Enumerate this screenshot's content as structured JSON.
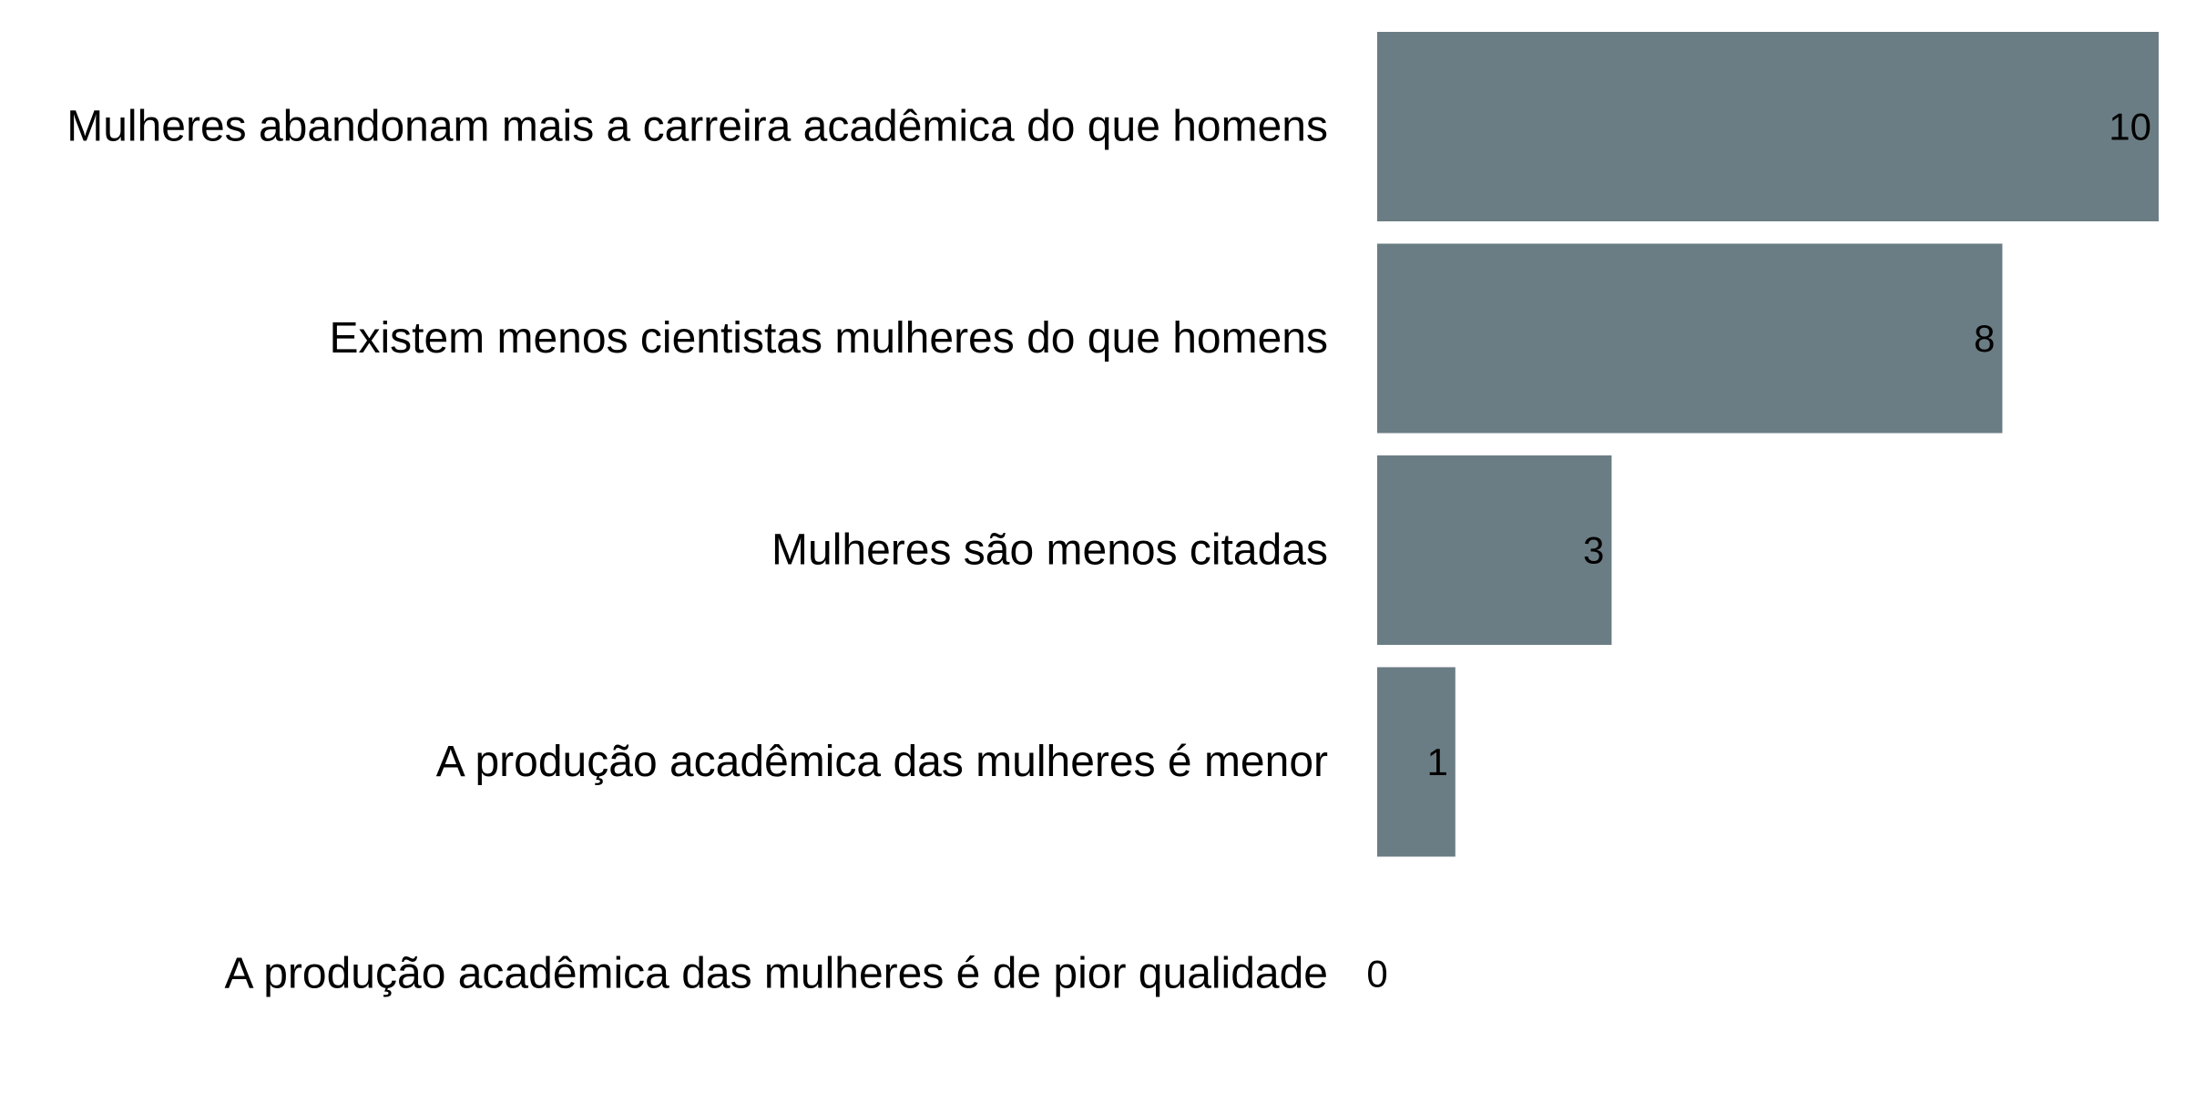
{
  "chart_data": {
    "type": "bar",
    "orientation": "horizontal",
    "categories": [
      "Mulheres abandonam mais a carreira acadêmica do que homens",
      "Existem menos cientistas mulheres do que homens",
      "Mulheres são menos citadas",
      "A produção acadêmica das mulheres é menor",
      "A produção acadêmica das mulheres é de pior qualidade"
    ],
    "values": [
      10,
      8,
      3,
      1,
      0
    ],
    "data_labels": [
      "10",
      "8",
      "3",
      "1",
      "0"
    ],
    "xlim": [
      0,
      10
    ],
    "bar_color": "#6b7d84",
    "grid": false,
    "axes_visible": false,
    "legend": "none"
  }
}
